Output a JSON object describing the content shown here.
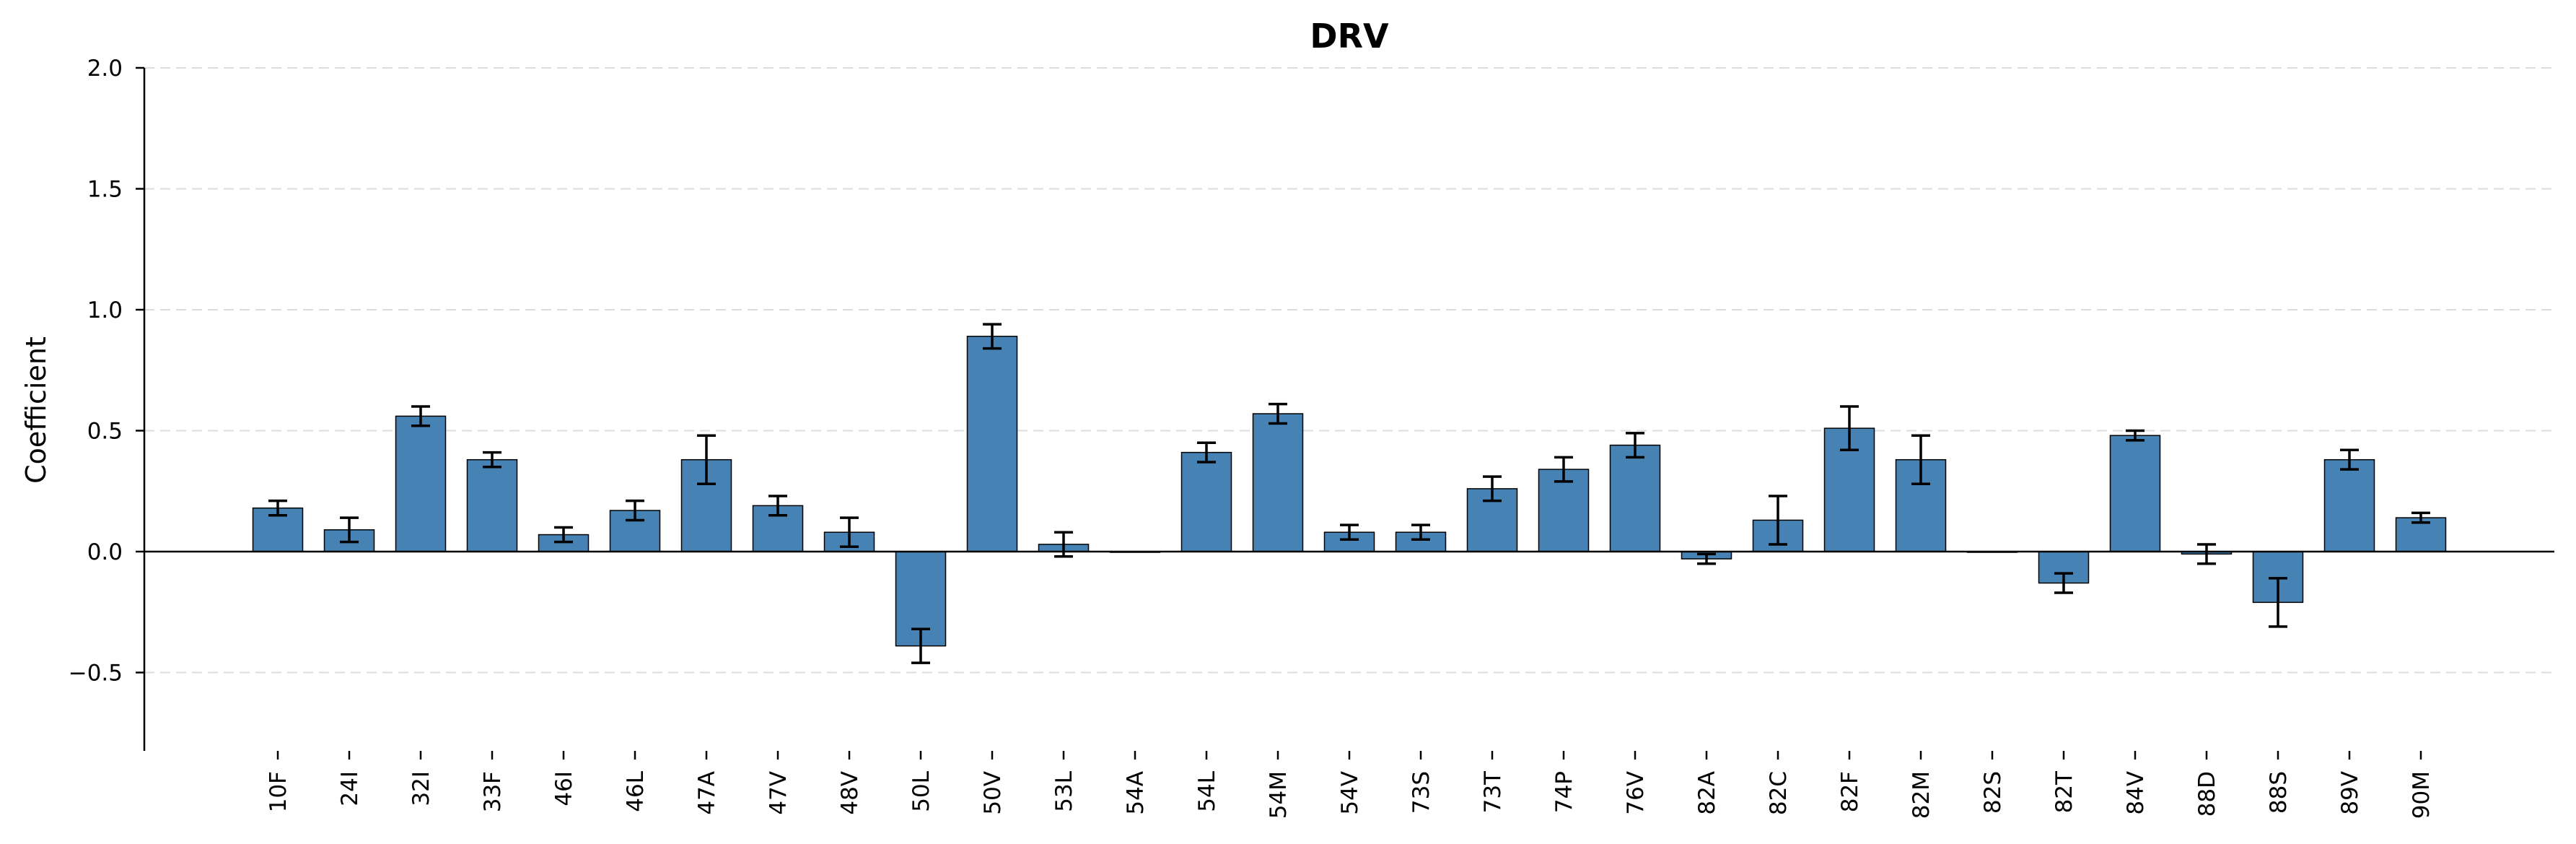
{
  "chart_data": {
    "type": "bar",
    "title": "DRV",
    "xlabel": "",
    "ylabel": "Coefficient",
    "ylim": [
      -0.82,
      2.0
    ],
    "yticks": [
      -0.5,
      0.0,
      0.5,
      1.0,
      1.5,
      2.0
    ],
    "ytick_labels": [
      "−0.5",
      "0.0",
      "0.5",
      "1.0",
      "1.5",
      "2.0"
    ],
    "grid": "horizontal dashed",
    "categories": [
      "10F",
      "24I",
      "32I",
      "33F",
      "46I",
      "46L",
      "47A",
      "47V",
      "48V",
      "50L",
      "50V",
      "53L",
      "54A",
      "54L",
      "54M",
      "54V",
      "73S",
      "73T",
      "74P",
      "76V",
      "82A",
      "82C",
      "82F",
      "82M",
      "82S",
      "82T",
      "84V",
      "88D",
      "88S",
      "89V",
      "90M"
    ],
    "values": [
      0.18,
      0.09,
      0.56,
      0.38,
      0.07,
      0.17,
      0.38,
      0.19,
      0.08,
      -0.39,
      0.89,
      0.03,
      0.0,
      0.41,
      0.57,
      0.08,
      0.08,
      0.26,
      0.34,
      0.44,
      -0.03,
      0.13,
      0.51,
      0.38,
      0.0,
      -0.13,
      0.48,
      -0.01,
      -0.21,
      0.38,
      0.14
    ],
    "errors": [
      0.03,
      0.05,
      0.04,
      0.03,
      0.03,
      0.04,
      0.1,
      0.04,
      0.06,
      0.07,
      0.05,
      0.05,
      0.0,
      0.04,
      0.04,
      0.03,
      0.03,
      0.05,
      0.05,
      0.05,
      0.02,
      0.1,
      0.09,
      0.1,
      0.0,
      0.04,
      0.02,
      0.04,
      0.1,
      0.04,
      0.02
    ],
    "colors": {
      "bar": "#4682b4",
      "edge": "#000000"
    }
  }
}
